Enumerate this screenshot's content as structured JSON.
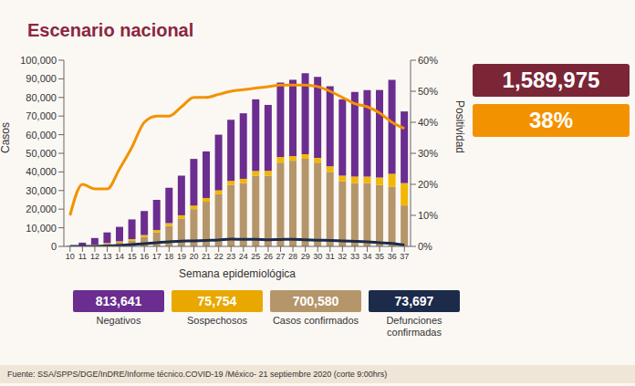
{
  "chart_data": {
    "type": "bar",
    "title": "Escenario nacional",
    "x_label": "Semana epidemiológica",
    "y_label": "Casos",
    "y2_label": "Positividad",
    "stacked": true,
    "grid": false,
    "categories": [
      "10",
      "11",
      "12",
      "13",
      "14",
      "15",
      "16",
      "17",
      "18",
      "19",
      "20",
      "21",
      "22",
      "23",
      "24",
      "25",
      "26",
      "27",
      "28",
      "29",
      "30",
      "31",
      "32",
      "33",
      "34",
      "35",
      "36",
      "37"
    ],
    "ylim": [
      0,
      100000
    ],
    "yticks": [
      {
        "value": 0,
        "label": "0"
      },
      {
        "value": 10000,
        "label": "10,000"
      },
      {
        "value": 20000,
        "label": "20,000"
      },
      {
        "value": 30000,
        "label": "30,000"
      },
      {
        "value": 40000,
        "label": "40,000"
      },
      {
        "value": 50000,
        "label": "50,000"
      },
      {
        "value": 60000,
        "label": "60,000"
      },
      {
        "value": 70000,
        "label": "70,000"
      },
      {
        "value": 80000,
        "label": "80,000"
      },
      {
        "value": 90000,
        "label": "90,000"
      },
      {
        "value": 100000,
        "label": "100,000"
      }
    ],
    "y2lim": [
      0,
      60
    ],
    "y2ticks": [
      {
        "value": 0,
        "label": "0%"
      },
      {
        "value": 10,
        "label": "10%"
      },
      {
        "value": 20,
        "label": "20%"
      },
      {
        "value": 30,
        "label": "30%"
      },
      {
        "value": 40,
        "label": "40%"
      },
      {
        "value": 50,
        "label": "50%"
      },
      {
        "value": 60,
        "label": "60%"
      }
    ],
    "series": [
      {
        "name": "Casos confirmados",
        "type": "bar",
        "color": "#b5956a",
        "values": [
          30,
          200,
          700,
          1300,
          2000,
          3000,
          5000,
          7500,
          11000,
          15000,
          20000,
          24000,
          28000,
          33000,
          34000,
          38000,
          38000,
          45000,
          46000,
          47000,
          45000,
          40000,
          35000,
          34000,
          34000,
          33000,
          32000,
          22000
        ]
      },
      {
        "name": "Sospechosos",
        "type": "bar",
        "color": "#f2b705",
        "values": [
          20,
          100,
          300,
          500,
          700,
          900,
          1100,
          1300,
          1500,
          1700,
          1900,
          2000,
          2100,
          2200,
          2300,
          2500,
          2600,
          3000,
          2500,
          2500,
          2500,
          3000,
          3000,
          3500,
          3500,
          4000,
          7000,
          12000
        ]
      },
      {
        "name": "Negativos",
        "type": "bar",
        "color": "#6b2d8f",
        "values": [
          250,
          1700,
          3500,
          5700,
          7800,
          10600,
          12900,
          16200,
          19000,
          21300,
          25100,
          25000,
          29900,
          32800,
          35200,
          38500,
          35400,
          40000,
          41000,
          43500,
          43500,
          43000,
          41000,
          45500,
          46500,
          47000,
          50500,
          38500
        ]
      },
      {
        "name": "Positividad",
        "type": "line",
        "axis": "y2",
        "color": "#f39200",
        "values": [
          10,
          20,
          18.5,
          18.5,
          25,
          32,
          40,
          42,
          42,
          45,
          48,
          48,
          49,
          50,
          50.5,
          51,
          51.5,
          52,
          52,
          52,
          51.5,
          50,
          48,
          46,
          45,
          43,
          40,
          38
        ]
      },
      {
        "name": "Defunciones confirmadas",
        "type": "line",
        "color": "#1c2b4a",
        "values": [
          0,
          10,
          50,
          200,
          500,
          1000,
          1500,
          2000,
          2500,
          2800,
          3000,
          3200,
          3400,
          3900,
          3800,
          3800,
          3600,
          3700,
          3800,
          3500,
          3300,
          3200,
          3000,
          2700,
          2400,
          2000,
          1600,
          700
        ]
      }
    ]
  },
  "highlights": [
    {
      "text": "1,589,975",
      "color": "#7a2637"
    },
    {
      "text": "38%",
      "color": "#f39200"
    }
  ],
  "summary": [
    {
      "text": "813,641",
      "caption": "Negativos",
      "color": "#6b2d8f"
    },
    {
      "text": "75,754",
      "caption": "Sospechosos",
      "color": "#e8a800"
    },
    {
      "text": "700,580",
      "caption": "Casos confirmados",
      "color": "#b5956a"
    },
    {
      "text": "73,697",
      "caption": "Defunciones confirmadas",
      "color": "#1c2b4a"
    }
  ],
  "source": "Fuente: SSA/SPPS/DGE/InDRE/Informe técnico.COVID-19 /México- 21 septiembre 2020 (corte 9:00hrs)"
}
